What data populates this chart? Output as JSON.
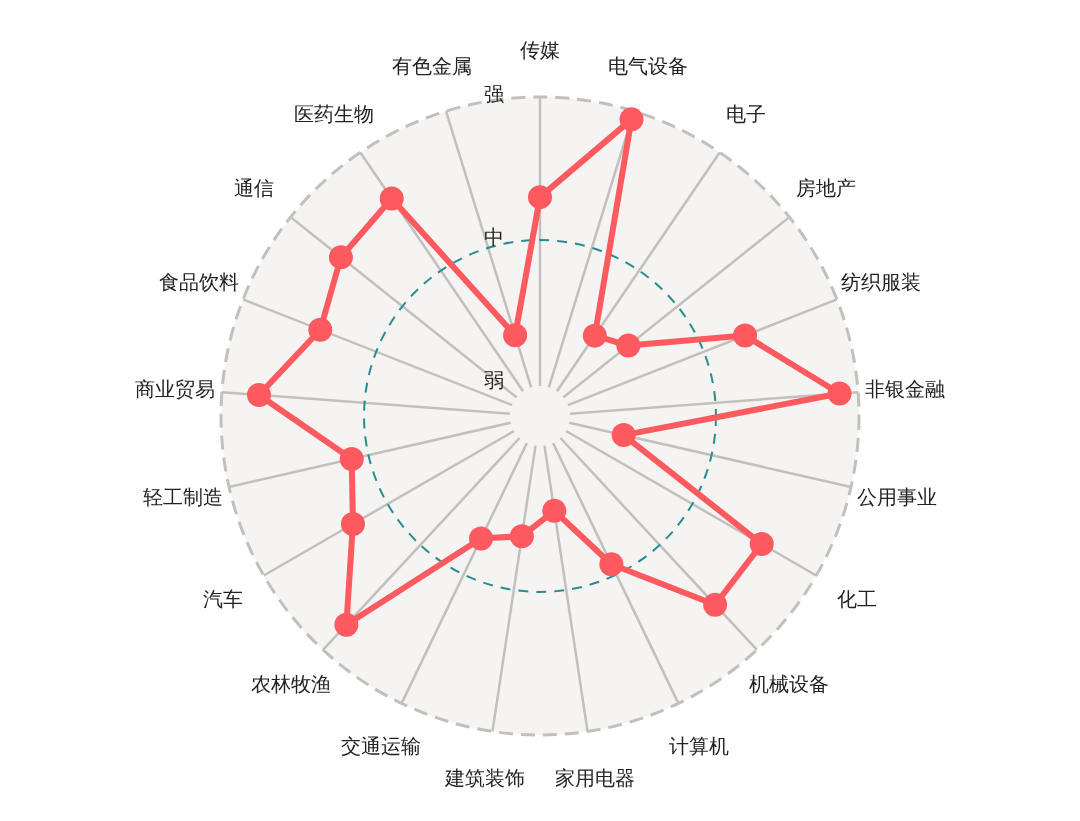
{
  "chart_data": {
    "type": "radar",
    "categories": [
      "传媒",
      "电气设备",
      "电子",
      "房地产",
      "纺织服装",
      "非银金融",
      "公用事业",
      "化工",
      "机械设备",
      "计算机",
      "家用电器",
      "建筑装饰",
      "交通运输",
      "农林牧渔",
      "汽车",
      "轻工制造",
      "商业贸易",
      "食品饮料",
      "通信",
      "医药生物",
      "有色金属"
    ],
    "series": [
      {
        "color": "#ff5a5f",
        "values": [
          1.3,
          1.94,
          0.45,
          0.56,
          1.31,
          1.87,
          0.37,
          1.56,
          1.57,
          0.92,
          0.44,
          0.62,
          0.72,
          1.76,
          1.28,
          1.12,
          1.74,
          1.42,
          1.55,
          1.61,
          0.36
        ]
      }
    ],
    "ylim": [
      -0.23,
      2
    ],
    "yticks": [
      {
        "value": 0,
        "label": "弱"
      },
      {
        "value": 1,
        "label": "中"
      },
      {
        "value": 2,
        "label": "强"
      }
    ],
    "grid": true,
    "marker": "circle",
    "line_style": "solid"
  }
}
